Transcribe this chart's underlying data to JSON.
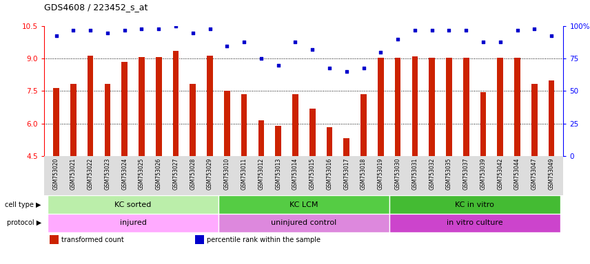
{
  "title": "GDS4608 / 223452_s_at",
  "samples": [
    "GSM753020",
    "GSM753021",
    "GSM753022",
    "GSM753023",
    "GSM753024",
    "GSM753025",
    "GSM753026",
    "GSM753027",
    "GSM753028",
    "GSM753029",
    "GSM753010",
    "GSM753011",
    "GSM753012",
    "GSM753013",
    "GSM753014",
    "GSM753015",
    "GSM753016",
    "GSM753017",
    "GSM753018",
    "GSM753019",
    "GSM753030",
    "GSM753031",
    "GSM753032",
    "GSM753035",
    "GSM753037",
    "GSM753039",
    "GSM753042",
    "GSM753044",
    "GSM753047",
    "GSM753049"
  ],
  "bar_values": [
    7.65,
    7.82,
    9.15,
    7.82,
    8.85,
    9.08,
    9.08,
    9.35,
    7.82,
    9.15,
    7.5,
    7.35,
    6.15,
    5.9,
    7.35,
    6.7,
    5.82,
    5.32,
    7.35,
    9.05,
    9.05,
    9.12,
    9.05,
    9.05,
    9.05,
    7.45,
    9.05,
    9.05,
    7.85,
    8.0
  ],
  "dot_values": [
    93,
    97,
    97,
    95,
    97,
    98,
    98,
    100,
    95,
    98,
    85,
    88,
    75,
    70,
    88,
    82,
    68,
    65,
    68,
    80,
    90,
    97,
    97,
    97,
    97,
    88,
    88,
    97,
    98,
    93
  ],
  "ylim_left": [
    4.5,
    10.5
  ],
  "ylim_right": [
    0,
    100
  ],
  "yticks_left": [
    4.5,
    6.0,
    7.5,
    9.0,
    10.5
  ],
  "yticks_right": [
    0,
    25,
    50,
    75,
    100
  ],
  "bar_color": "#cc2200",
  "dot_color": "#0000cc",
  "grid_lines": [
    6.0,
    7.5,
    9.0
  ],
  "groups": [
    {
      "label": "KC sorted",
      "start": 0,
      "end": 10,
      "color": "#bbeeaa"
    },
    {
      "label": "KC LCM",
      "start": 10,
      "end": 20,
      "color": "#55cc44"
    },
    {
      "label": "KC in vitro",
      "start": 20,
      "end": 30,
      "color": "#44bb33"
    }
  ],
  "protocols": [
    {
      "label": "injured",
      "start": 0,
      "end": 10,
      "color": "#ffaaff"
    },
    {
      "label": "uninjured control",
      "start": 10,
      "end": 20,
      "color": "#dd88dd"
    },
    {
      "label": "in vitro culture",
      "start": 20,
      "end": 30,
      "color": "#cc44cc"
    }
  ],
  "bg_color": "#ffffff",
  "xticklabel_bg": "#dddddd",
  "legend": [
    {
      "label": "transformed count",
      "color": "#cc2200"
    },
    {
      "label": "percentile rank within the sample",
      "color": "#0000cc"
    }
  ]
}
